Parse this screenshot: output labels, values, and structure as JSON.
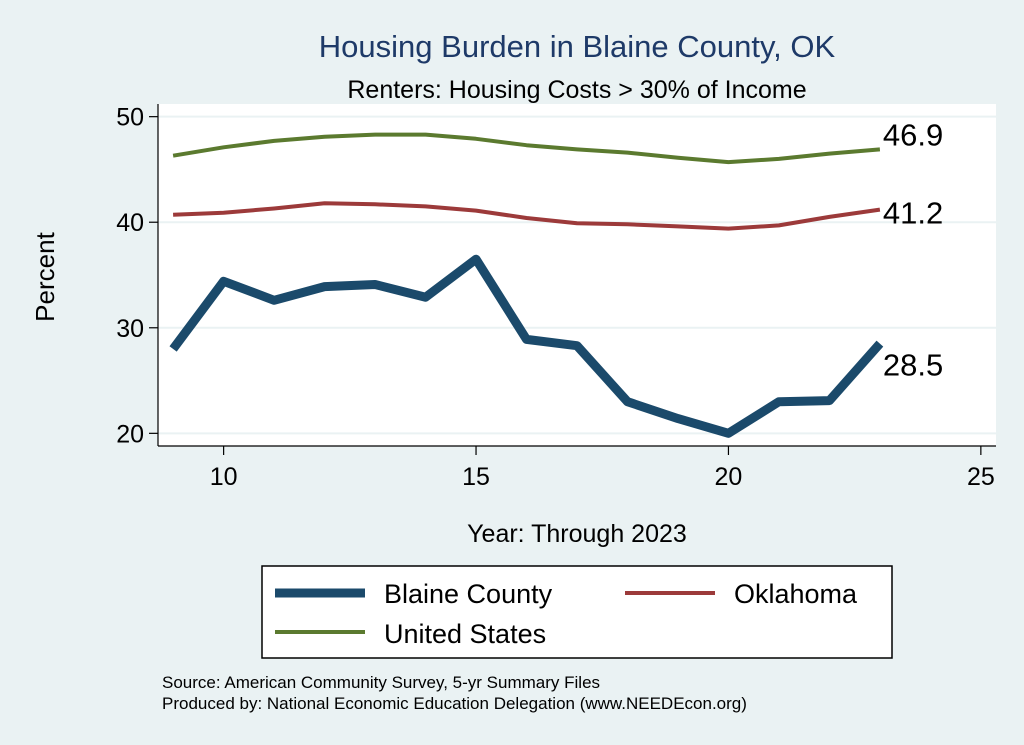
{
  "chart_data": {
    "type": "line",
    "title": "Housing Burden in Blaine County, OK",
    "subtitle": "Renters: Housing Costs > 30% of Income",
    "xlabel": "Year: Through 2023",
    "ylabel": "Percent",
    "xlim": [
      8.7,
      25.3
    ],
    "ylim": [
      18.8,
      51.2
    ],
    "xticks": [
      10,
      15,
      20,
      25
    ],
    "yticks": [
      20,
      30,
      40,
      50
    ],
    "grid": true,
    "x": [
      9,
      10,
      11,
      12,
      13,
      14,
      15,
      16,
      17,
      18,
      19,
      20,
      21,
      22,
      23
    ],
    "series": [
      {
        "name": "United States",
        "color": "#5b7a2f",
        "values": [
          46.3,
          47.1,
          47.7,
          48.1,
          48.3,
          48.3,
          47.9,
          47.3,
          46.9,
          46.6,
          46.1,
          45.7,
          46.0,
          46.5,
          46.9
        ],
        "end_label": "46.9"
      },
      {
        "name": "Oklahoma",
        "color": "#9c3a3a",
        "values": [
          40.7,
          40.9,
          41.3,
          41.8,
          41.7,
          41.5,
          41.1,
          40.4,
          39.9,
          39.8,
          39.6,
          39.4,
          39.7,
          40.5,
          41.2
        ],
        "end_label": "41.2"
      },
      {
        "name": "Blaine County",
        "color": "#1b4a6b",
        "values": [
          28.0,
          34.4,
          32.6,
          33.9,
          34.1,
          32.9,
          36.5,
          28.9,
          28.3,
          23.0,
          21.4,
          20.0,
          23.0,
          23.1,
          28.5
        ],
        "end_label": "28.5"
      }
    ],
    "legend": {
      "position": "bottom",
      "items": [
        {
          "name": "Blaine County",
          "color": "#1b4a6b"
        },
        {
          "name": "Oklahoma",
          "color": "#9c3a3a"
        },
        {
          "name": "United States",
          "color": "#5b7a2f"
        }
      ]
    },
    "notes": [
      "Source: American Community Survey, 5-yr Summary Files",
      "Produced by: National Economic Education Delegation (www.NEEDEcon.org)"
    ]
  }
}
